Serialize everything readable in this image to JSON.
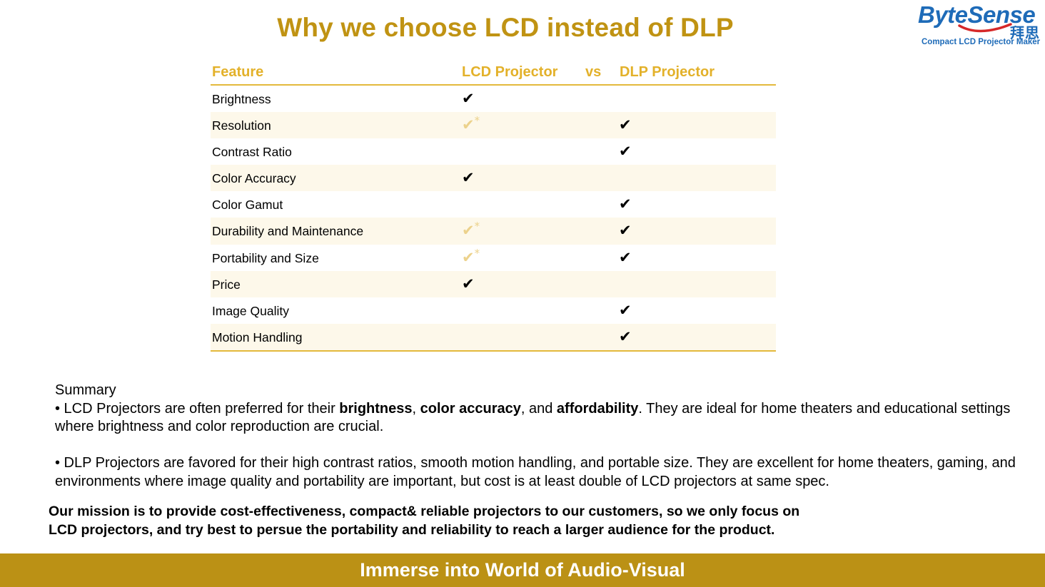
{
  "title": "Why we choose LCD instead of DLP",
  "logo": {
    "wordmark": "ByteSense",
    "chinese": "拜思",
    "tagline": "Compact LCD Projector Maker",
    "brand_color": "#1e6bb8"
  },
  "table": {
    "headers": {
      "feature": "Feature",
      "lcd": "LCD Projector",
      "vs": "vs",
      "dlp": "DLP Projector"
    },
    "check_symbol": "✔",
    "asterisk": "*",
    "rows": [
      {
        "feature": "Brightness",
        "lcd": "check",
        "dlp": "none"
      },
      {
        "feature": "Resolution",
        "lcd": "faded",
        "dlp": "check"
      },
      {
        "feature": "Contrast Ratio",
        "lcd": "none",
        "dlp": "check"
      },
      {
        "feature": "Color Accuracy",
        "lcd": "check",
        "dlp": "none"
      },
      {
        "feature": "Color Gamut",
        "lcd": "none",
        "dlp": "check"
      },
      {
        "feature": "Durability and Maintenance",
        "lcd": "faded",
        "dlp": "check"
      },
      {
        "feature": "Portability and Size",
        "lcd": "faded",
        "dlp": "check"
      },
      {
        "feature": "Price",
        "lcd": "check",
        "dlp": "none"
      },
      {
        "feature": "Image Quality",
        "lcd": "none",
        "dlp": "check"
      },
      {
        "feature": "Motion Handling",
        "lcd": "none",
        "dlp": "check"
      }
    ]
  },
  "summary": {
    "heading": "Summary",
    "lcd_bullet": {
      "prefix": "• LCD Projectors are often preferred for their ",
      "bold1": "brightness",
      "sep1": ", ",
      "bold2": "color accuracy",
      "sep2": ", and ",
      "bold3": "affordability",
      "suffix": ". They are ideal for home theaters and educational settings where brightness and color reproduction are crucial."
    },
    "dlp_bullet": "• DLP Projectors are favored for their high contrast ratios, smooth motion handling, and portable size. They are excellent for home theaters, gaming, and environments where image quality and portability are important, but cost is at least double of LCD projectors at same spec."
  },
  "mission": {
    "line1": "Our mission is to provide cost-effectiveness, compact& reliable projectors to our customers, so we only focus on",
    "line2": "LCD projectors, and try best to persue the portability and reliability to reach a larger audience for the product."
  },
  "footer": {
    "text": "Immerse into World of Audio-Visual",
    "color": "#bb9115"
  },
  "colors": {
    "accent_gold": "#c09313",
    "header_gold": "#e3b12a",
    "row_shade": "#fdf8ea",
    "faded_check": "#ecd28c"
  }
}
